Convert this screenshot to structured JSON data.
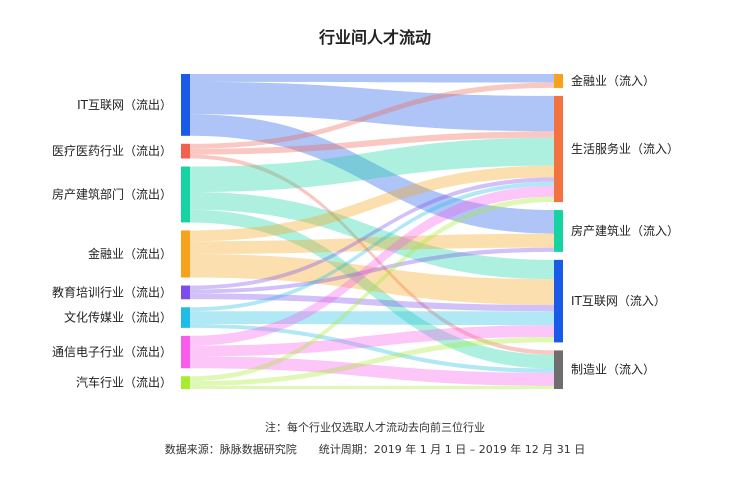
{
  "chart_data": {
    "type": "sankey",
    "title": "行业间人才流动",
    "sources": [
      {
        "label": "IT互联网（流出）",
        "color": "#1a5ae8"
      },
      {
        "label": "医疗医药行业（流出）",
        "color": "#f0614f"
      },
      {
        "label": "房产建筑部门（流出）",
        "color": "#16d3a3"
      },
      {
        "label": "金融业（流出）",
        "color": "#f7a21a"
      },
      {
        "label": "教育培训行业（流出）",
        "color": "#7a4dec"
      },
      {
        "label": "文化传媒业（流出）",
        "color": "#1fbde6"
      },
      {
        "label": "通信电子行业（流出）",
        "color": "#f75cea"
      },
      {
        "label": "汽车行业（流出）",
        "color": "#a6ec2f"
      }
    ],
    "targets": [
      {
        "label": "金融业（流入）",
        "color": "#f7a21a"
      },
      {
        "label": "生活服务业（流入）",
        "color": "#f2733f"
      },
      {
        "label": "房产建筑业（流入）",
        "color": "#16d3a3"
      },
      {
        "label": "IT互联网（流入）",
        "color": "#1a5ae8"
      },
      {
        "label": "制造业（流入）",
        "color": "#6e6e6e"
      }
    ],
    "flows": [
      {
        "source": 0,
        "target": 0,
        "value": 8
      },
      {
        "source": 0,
        "target": 1,
        "value": 33
      },
      {
        "source": 0,
        "target": 2,
        "value": 22
      },
      {
        "source": 1,
        "target": 0,
        "value": 5
      },
      {
        "source": 1,
        "target": 1,
        "value": 6
      },
      {
        "source": 1,
        "target": 4,
        "value": 4
      },
      {
        "source": 2,
        "target": 1,
        "value": 26
      },
      {
        "source": 2,
        "target": 3,
        "value": 18
      },
      {
        "source": 2,
        "target": 4,
        "value": 13
      },
      {
        "source": 3,
        "target": 1,
        "value": 11
      },
      {
        "source": 3,
        "target": 2,
        "value": 13
      },
      {
        "source": 3,
        "target": 3,
        "value": 24
      },
      {
        "source": 4,
        "target": 1,
        "value": 4
      },
      {
        "source": 4,
        "target": 2,
        "value": 4
      },
      {
        "source": 4,
        "target": 3,
        "value": 6
      },
      {
        "source": 5,
        "target": 1,
        "value": 4
      },
      {
        "source": 5,
        "target": 3,
        "value": 13
      },
      {
        "source": 5,
        "target": 4,
        "value": 4
      },
      {
        "source": 6,
        "target": 1,
        "value": 10
      },
      {
        "source": 6,
        "target": 3,
        "value": 11
      },
      {
        "source": 6,
        "target": 4,
        "value": 12
      },
      {
        "source": 7,
        "target": 1,
        "value": 5
      },
      {
        "source": 7,
        "target": 3,
        "value": 5
      },
      {
        "source": 7,
        "target": 4,
        "value": 3
      }
    ]
  },
  "footer": {
    "note": "注：每个行业仅选取人才流动去向前三位行业",
    "source": "数据来源：脉脉数据研究院",
    "period": "统计周期：2019 年 1 月 1 日 – 2019 年 12 月 31 日"
  }
}
